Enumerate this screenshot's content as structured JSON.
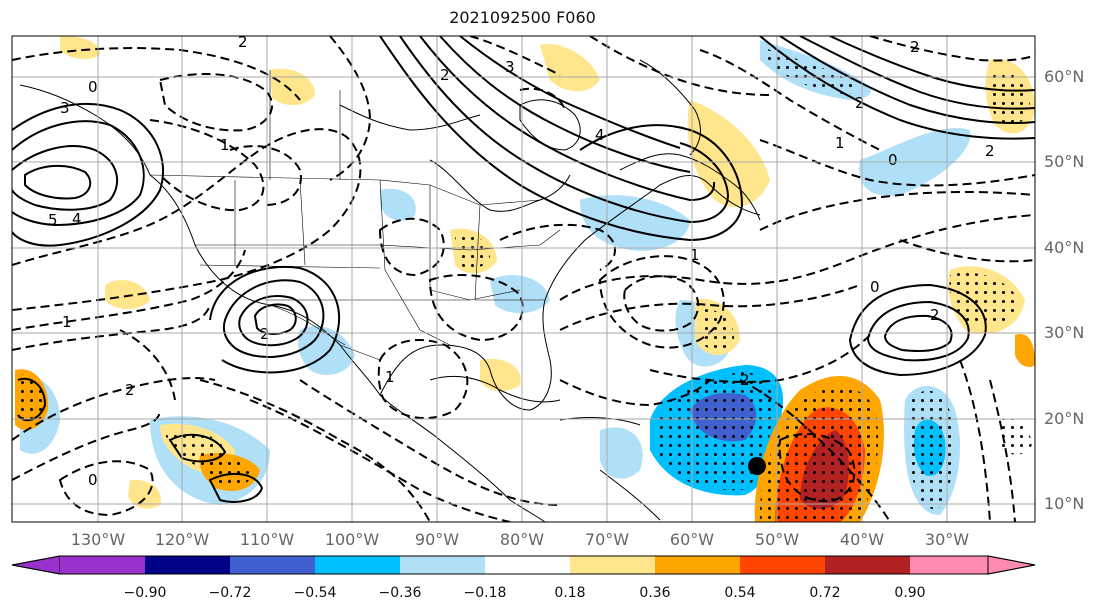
{
  "title": "2021092500 F060",
  "lat_labels": [
    "60°N",
    "50°N",
    "40°N",
    "30°N",
    "20°N",
    "10°N"
  ],
  "lon_labels": [
    "130°W",
    "120°W",
    "110°W",
    "100°W",
    "90°W",
    "80°W",
    "70°W",
    "60°W",
    "50°W",
    "40°W",
    "30°W"
  ],
  "colorbar": {
    "colors": [
      "#9932cc",
      "#00008b",
      "#4060d0",
      "#00bfff",
      "#b0e0f8",
      "#ffffff",
      "#ffe68c",
      "#ffa500",
      "#ff4500",
      "#b22222",
      "#ff8ab4"
    ],
    "ticks": [
      "−0.90",
      "−0.72",
      "−0.54",
      "−0.36",
      "−0.18",
      "0.18",
      "0.36",
      "0.54",
      "0.72",
      "0.90"
    ]
  },
  "contour_labels": [
    "2",
    "3",
    "4",
    "5",
    "1",
    "0",
    "2",
    "1",
    "2",
    "0",
    "4",
    "3",
    "2",
    "1",
    "0",
    "2",
    "2",
    "1",
    "2",
    "0",
    "2",
    "1",
    "2"
  ],
  "marker_color": "#000000"
}
